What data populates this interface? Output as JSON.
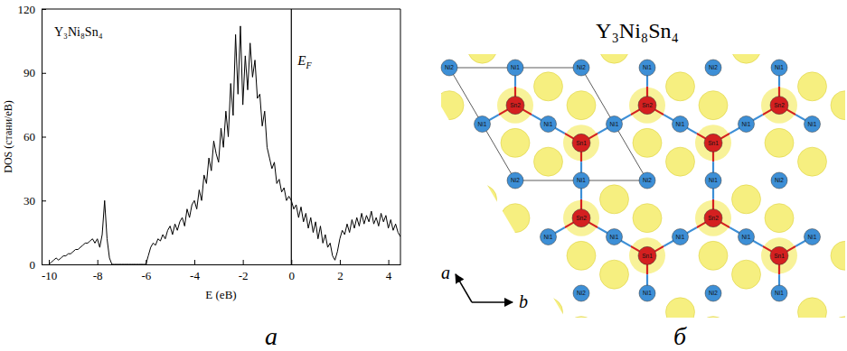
{
  "chart_data": {
    "type": "line",
    "annotation": "Y₃Ni₈Sn₄",
    "x_label": "E (еВ)",
    "y_label": "DOS (стани/еВ)",
    "color": "#000000",
    "grid": false,
    "xlim": [
      -10.3,
      4.5
    ],
    "ylim": [
      0,
      120
    ],
    "xticks": [
      -10,
      -8,
      -6,
      -4,
      -2,
      0,
      2,
      4
    ],
    "yticks": [
      0,
      30,
      60,
      90,
      120
    ],
    "vline": {
      "x": 0,
      "label": "E",
      "label_subscript": "F"
    },
    "x": [
      -10.0,
      -9.9,
      -9.8,
      -9.7,
      -9.6,
      -9.5,
      -9.4,
      -9.3,
      -9.2,
      -9.1,
      -9.0,
      -8.9,
      -8.8,
      -8.7,
      -8.6,
      -8.5,
      -8.4,
      -8.3,
      -8.2,
      -8.1,
      -8.0,
      -7.9,
      -7.8,
      -7.7,
      -7.6,
      -7.5,
      -7.4,
      -7.3,
      -7.2,
      -7.1,
      -7.0,
      -6.9,
      -6.8,
      -6.7,
      -6.6,
      -6.5,
      -6.4,
      -6.3,
      -6.2,
      -6.1,
      -6.0,
      -5.9,
      -5.8,
      -5.7,
      -5.6,
      -5.5,
      -5.4,
      -5.3,
      -5.2,
      -5.1,
      -5.0,
      -4.9,
      -4.8,
      -4.7,
      -4.6,
      -4.5,
      -4.4,
      -4.3,
      -4.2,
      -4.1,
      -4.0,
      -3.9,
      -3.8,
      -3.7,
      -3.6,
      -3.5,
      -3.4,
      -3.3,
      -3.2,
      -3.1,
      -3.0,
      -2.9,
      -2.8,
      -2.7,
      -2.6,
      -2.5,
      -2.4,
      -2.3,
      -2.2,
      -2.1,
      -2.0,
      -1.9,
      -1.8,
      -1.7,
      -1.6,
      -1.5,
      -1.4,
      -1.3,
      -1.2,
      -1.1,
      -1.0,
      -0.9,
      -0.8,
      -0.7,
      -0.6,
      -0.5,
      -0.4,
      -0.3,
      -0.2,
      -0.1,
      0.0,
      0.1,
      0.2,
      0.3,
      0.4,
      0.5,
      0.6,
      0.7,
      0.8,
      0.9,
      1.0,
      1.1,
      1.2,
      1.3,
      1.4,
      1.5,
      1.6,
      1.7,
      1.8,
      1.9,
      2.0,
      2.1,
      2.2,
      2.3,
      2.4,
      2.5,
      2.6,
      2.7,
      2.8,
      2.9,
      3.0,
      3.1,
      3.2,
      3.3,
      3.4,
      3.5,
      3.6,
      3.7,
      3.8,
      3.9,
      4.0,
      4.1,
      4.2,
      4.3,
      4.4,
      4.5
    ],
    "values": [
      0,
      1,
      2,
      3,
      2,
      3,
      4,
      4,
      5,
      5,
      6,
      7,
      7,
      8,
      9,
      10,
      10,
      11,
      12,
      10,
      12,
      8,
      14,
      30,
      12,
      3,
      0,
      0,
      0,
      0,
      0,
      0,
      0,
      0,
      0,
      0,
      0,
      0,
      0,
      0,
      0,
      4,
      8,
      10,
      9,
      12,
      11,
      14,
      12,
      16,
      18,
      14,
      19,
      16,
      20,
      22,
      18,
      26,
      22,
      28,
      30,
      26,
      35,
      30,
      42,
      38,
      50,
      44,
      58,
      52,
      48,
      64,
      55,
      72,
      60,
      85,
      70,
      108,
      80,
      112,
      75,
      98,
      82,
      104,
      88,
      96,
      78,
      80,
      65,
      72,
      55,
      50,
      45,
      48,
      38,
      40,
      34,
      36,
      30,
      32,
      30,
      26,
      28,
      22,
      27,
      20,
      24,
      17,
      22,
      15,
      20,
      12,
      18,
      10,
      14,
      8,
      10,
      4,
      2,
      6,
      12,
      16,
      14,
      19,
      15,
      21,
      17,
      22,
      18,
      24,
      19,
      23,
      20,
      25,
      19,
      22,
      18,
      24,
      20,
      23,
      17,
      21,
      16,
      19,
      15,
      13
    ]
  },
  "structure": {
    "title": "Y₃Ni₈Sn₄",
    "atoms": [
      {
        "label": "Ni1",
        "color": "#3d8fd6"
      },
      {
        "label": "Ni2",
        "color": "#3d8fd6"
      },
      {
        "label": "Sn1",
        "color": "#d42020"
      },
      {
        "label": "Sn2",
        "color": "#d42020"
      }
    ],
    "axes": [
      "a",
      "b"
    ]
  },
  "panel_labels": [
    "а",
    "б"
  ]
}
